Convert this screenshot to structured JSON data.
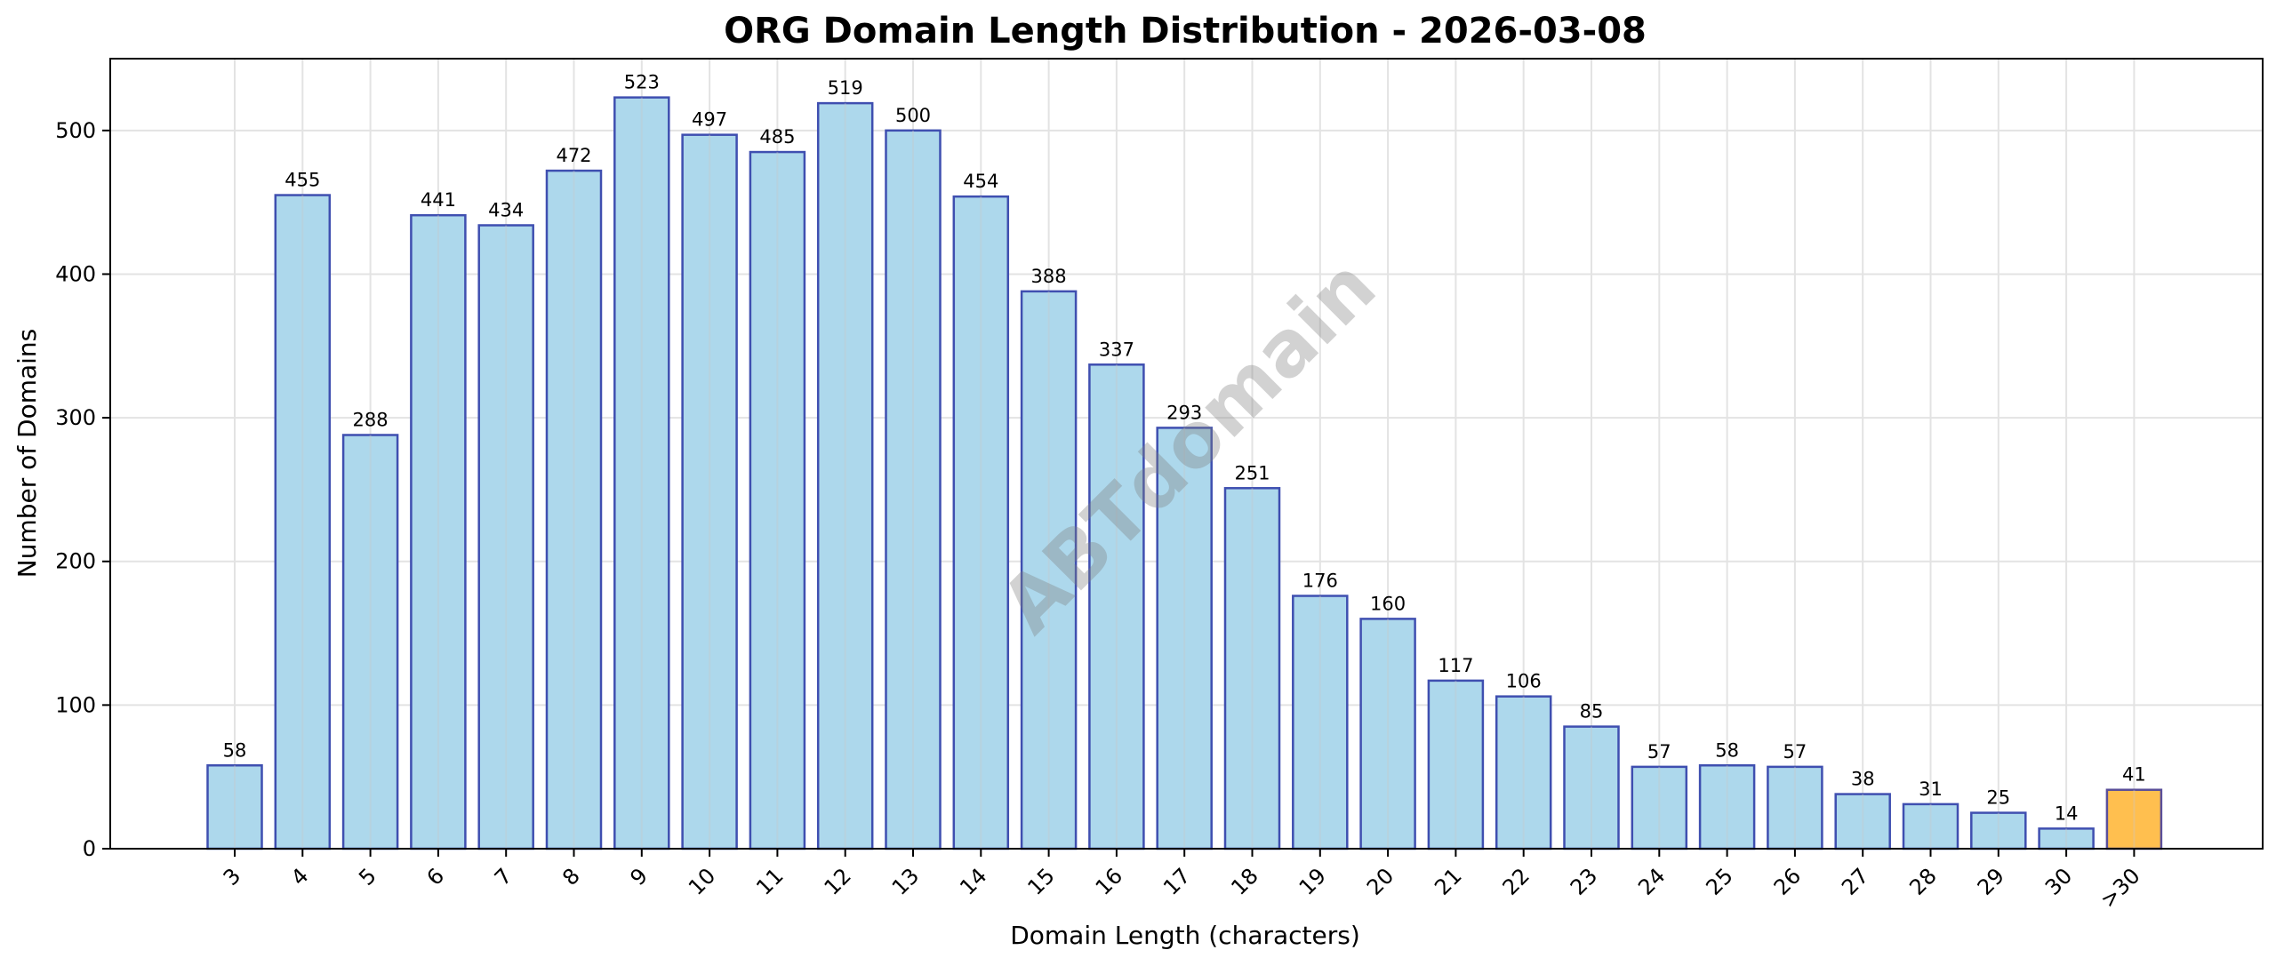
{
  "chart_data": {
    "type": "bar",
    "title": "ORG Domain Length Distribution - 2026-03-08",
    "xlabel": "Domain Length (characters)",
    "ylabel": "Number of Domains",
    "categories": [
      "3",
      "4",
      "5",
      "6",
      "7",
      "8",
      "9",
      "10",
      "11",
      "12",
      "13",
      "14",
      "15",
      "16",
      "17",
      "18",
      "19",
      "20",
      "21",
      "22",
      "23",
      "24",
      "25",
      "26",
      "27",
      "28",
      "29",
      "30",
      ">30"
    ],
    "values": [
      58,
      455,
      288,
      441,
      434,
      472,
      523,
      497,
      485,
      519,
      500,
      454,
      388,
      337,
      293,
      251,
      176,
      160,
      117,
      106,
      85,
      57,
      58,
      57,
      38,
      31,
      25,
      14,
      41
    ],
    "ylim": [
      0,
      550
    ],
    "yticks": [
      0,
      100,
      200,
      300,
      400,
      500
    ],
    "grid": true,
    "legend": null,
    "bar_labels": true,
    "watermark": "ABTdomain",
    "colors": {
      "bar_fill": "#ADD8EC",
      "bar_edge": "#3F4FB0",
      "highlight_fill": "#FFBF4F",
      "highlight_edge": "#5A4F9A",
      "grid": "#E3E3E3",
      "axis": "#000000"
    },
    "highlight_category": ">30"
  }
}
